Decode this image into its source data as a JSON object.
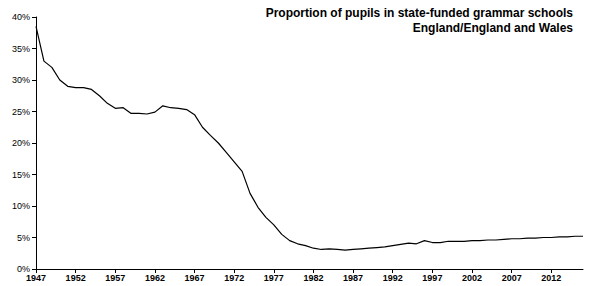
{
  "chart_data": {
    "type": "line",
    "title": "Proportion of pupils in state-funded grammar schools",
    "subtitle": "England/England and Wales",
    "x": [
      1947,
      1948,
      1949,
      1950,
      1951,
      1952,
      1953,
      1954,
      1955,
      1956,
      1957,
      1958,
      1959,
      1960,
      1961,
      1962,
      1963,
      1964,
      1965,
      1966,
      1967,
      1968,
      1969,
      1970,
      1971,
      1972,
      1973,
      1974,
      1975,
      1976,
      1977,
      1978,
      1979,
      1980,
      1981,
      1982,
      1983,
      1984,
      1985,
      1986,
      1987,
      1988,
      1989,
      1990,
      1991,
      1992,
      1993,
      1994,
      1995,
      1996,
      1997,
      1998,
      1999,
      2000,
      2001,
      2002,
      2003,
      2004,
      2005,
      2006,
      2007,
      2008,
      2009,
      2010,
      2011,
      2012,
      2013,
      2014,
      2015,
      2016
    ],
    "values": [
      38.5,
      33,
      32,
      30,
      29,
      28.8,
      28.8,
      28.5,
      27.5,
      26.3,
      25.5,
      25.6,
      24.7,
      24.7,
      24.6,
      24.9,
      25.9,
      25.6,
      25.5,
      25.3,
      24.5,
      22.5,
      21.2,
      20,
      18.5,
      17,
      15.5,
      12,
      9.8,
      8.2,
      7,
      5.5,
      4.5,
      4,
      3.7,
      3.3,
      3.1,
      3.2,
      3.1,
      3,
      3.1,
      3.2,
      3.3,
      3.4,
      3.5,
      3.7,
      3.9,
      4.1,
      4,
      4.5,
      4.2,
      4.2,
      4.4,
      4.4,
      4.4,
      4.5,
      4.5,
      4.6,
      4.6,
      4.7,
      4.8,
      4.8,
      4.9,
      4.9,
      5,
      5,
      5.1,
      5.1,
      5.2,
      5.2
    ],
    "color": "#000000",
    "xlim": [
      1947,
      2016
    ],
    "xticks": [
      1947,
      1952,
      1957,
      1962,
      1967,
      1972,
      1977,
      1982,
      1987,
      1992,
      1997,
      2002,
      2007,
      2012
    ],
    "ylim": [
      0,
      40
    ],
    "yticks": [
      {
        "value": 0,
        "label": "0%"
      },
      {
        "value": 5,
        "label": "5%"
      },
      {
        "value": 10,
        "label": "10%"
      },
      {
        "value": 15,
        "label": "15%"
      },
      {
        "value": 20,
        "label": "20%"
      },
      {
        "value": 25,
        "label": "25%"
      },
      {
        "value": 30,
        "label": "30%"
      },
      {
        "value": 35,
        "label": "35%"
      },
      {
        "value": 40,
        "label": "40%"
      }
    ],
    "grid": false
  }
}
